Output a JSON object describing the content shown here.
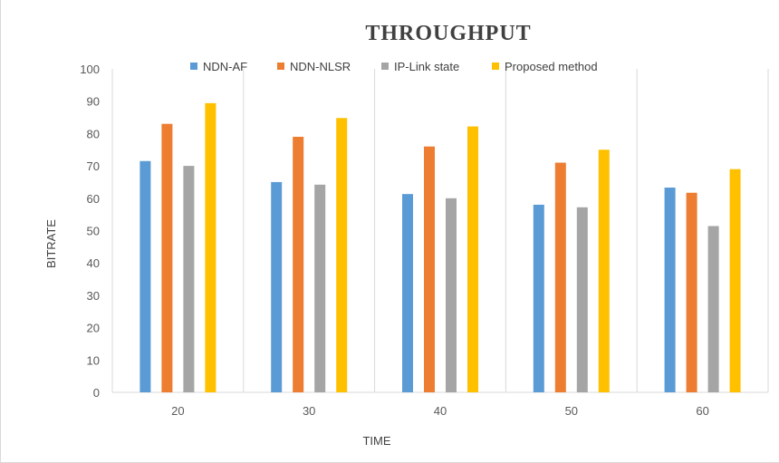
{
  "chart_data": {
    "type": "bar",
    "title": "THROUGHPUT",
    "xlabel": "TIME",
    "ylabel": "BITRATE",
    "categories": [
      "20",
      "30",
      "40",
      "50",
      "60"
    ],
    "ylim": [
      0,
      100
    ],
    "yticks": [
      0,
      10,
      20,
      30,
      40,
      50,
      60,
      70,
      80,
      90,
      100
    ],
    "grid": "vertical category separators",
    "legend_position": "top",
    "series": [
      {
        "name": "NDN-AF",
        "color": "#5b9bd5",
        "values": [
          71.5,
          65,
          61.3,
          58,
          63.3
        ]
      },
      {
        "name": "NDN-NLSR",
        "color": "#ed7d31",
        "values": [
          83,
          79,
          76,
          71,
          61.7
        ]
      },
      {
        "name": "IP-Link state",
        "color": "#a5a5a5",
        "values": [
          70,
          64.2,
          60,
          57.2,
          51.4
        ]
      },
      {
        "name": "Proposed method",
        "color": "#ffc000",
        "values": [
          89.4,
          84.8,
          82.2,
          75,
          69
        ]
      }
    ]
  }
}
